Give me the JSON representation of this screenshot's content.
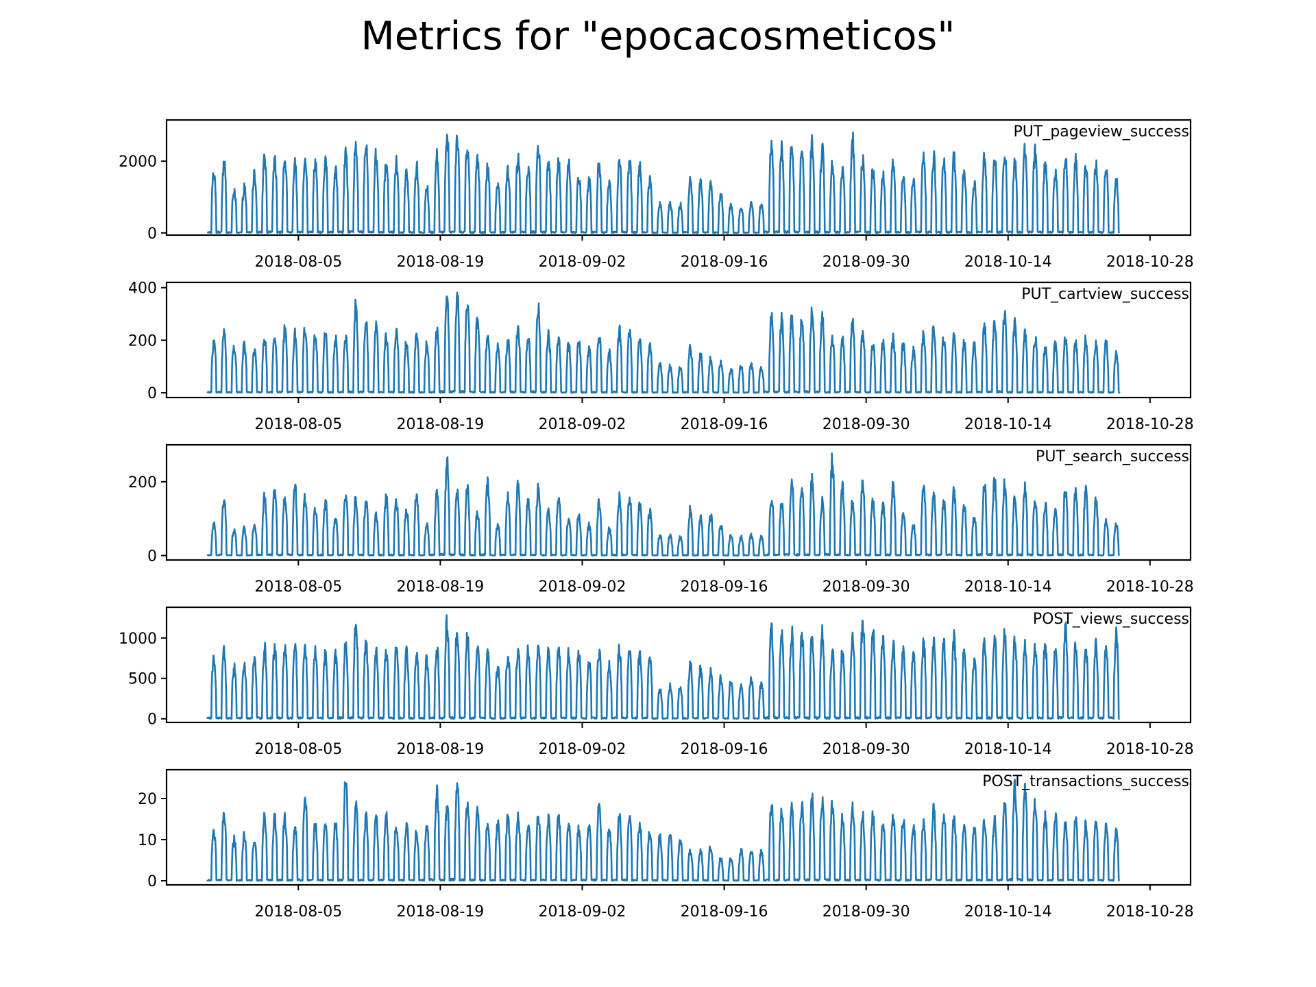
{
  "chart_data": {
    "type": "line",
    "title": "Metrics for \"epocacosmeticos\"",
    "line_color": "#1f77b4",
    "x_ticks": [
      "2018-08-05",
      "2018-08-19",
      "2018-09-02",
      "2018-09-16",
      "2018-09-30",
      "2018-10-14",
      "2018-10-28"
    ],
    "x_range": [
      "2018-07-23",
      "2018-11-01"
    ],
    "data_start": "2018-07-27",
    "data_end": "2018-10-25",
    "sampling": "hourly (approximate reconstruction of daily cycles)",
    "panels": [
      {
        "name": "PUT_pageview_success",
        "ylim": [
          -60,
          3150
        ],
        "yticks": [
          0,
          2000
        ],
        "daily_peaks": [
          1850,
          2150,
          1350,
          1400,
          1800,
          2250,
          2300,
          2250,
          2050,
          2350,
          2200,
          2250,
          1950,
          2350,
          2700,
          2650,
          2400,
          2150,
          2200,
          1900,
          2000,
          1400,
          2350,
          3050,
          2950,
          2750,
          2300,
          2000,
          1500,
          1900,
          2250,
          2050,
          2650,
          2200,
          2150,
          2150,
          1750,
          1600,
          2150,
          1500,
          2200,
          2150,
          2050,
          1700,
          900,
          950,
          850,
          1600,
          1550,
          1450,
          1200,
          900,
          800,
          900,
          900,
          2650,
          2600,
          2750,
          2500,
          2800,
          2600,
          2050,
          1950,
          2850,
          2200,
          1900,
          1800,
          2150,
          1700,
          1650,
          2250,
          2350,
          2200,
          2300,
          1900,
          1500,
          2300,
          2350,
          2450,
          2200,
          2650,
          2450,
          2100,
          1900,
          2300,
          2250,
          2050,
          2050,
          2000,
          1600,
          1600,
          2400,
          2350,
          2300,
          2200
        ],
        "tail_value": 20
      },
      {
        "name": "PUT_cartview_success",
        "ylim": [
          -18,
          420
        ],
        "yticks": [
          0,
          200,
          400
        ],
        "daily_peaks": [
          220,
          250,
          200,
          200,
          180,
          230,
          240,
          260,
          250,
          270,
          240,
          260,
          220,
          240,
          360,
          290,
          270,
          230,
          260,
          210,
          240,
          200,
          260,
          390,
          400,
          380,
          310,
          240,
          190,
          220,
          260,
          240,
          350,
          240,
          230,
          200,
          220,
          180,
          240,
          170,
          260,
          250,
          230,
          200,
          120,
          110,
          110,
          190,
          160,
          140,
          130,
          100,
          110,
          120,
          110,
          310,
          300,
          310,
          300,
          340,
          320,
          230,
          220,
          300,
          240,
          200,
          210,
          230,
          210,
          180,
          240,
          270,
          230,
          230,
          210,
          200,
          280,
          300,
          340,
          290,
          240,
          230,
          190,
          200,
          230,
          210,
          220,
          210,
          210,
          170,
          170,
          250,
          240,
          250,
          220
        ],
        "tail_value": 2
      },
      {
        "name": "PUT_search_success",
        "ylim": [
          -12,
          300
        ],
        "yticks": [
          0,
          200
        ],
        "daily_peaks": [
          95,
          170,
          80,
          80,
          95,
          175,
          190,
          170,
          200,
          170,
          140,
          160,
          110,
          180,
          175,
          160,
          120,
          170,
          160,
          140,
          180,
          90,
          180,
          270,
          190,
          200,
          130,
          210,
          90,
          170,
          210,
          170,
          200,
          130,
          170,
          110,
          120,
          90,
          160,
          80,
          170,
          175,
          150,
          130,
          60,
          60,
          55,
          140,
          110,
          120,
          90,
          60,
          55,
          60,
          55,
          170,
          160,
          220,
          200,
          220,
          160,
          280,
          200,
          160,
          210,
          160,
          150,
          210,
          120,
          90,
          210,
          180,
          160,
          190,
          150,
          110,
          210,
          220,
          210,
          170,
          200,
          170,
          150,
          130,
          200,
          190,
          190,
          160,
          110,
          90,
          90,
          200,
          200,
          230,
          190
        ],
        "tail_value": 2
      },
      {
        "name": "POST_views_success",
        "ylim": [
          -45,
          1380
        ],
        "yticks": [
          0,
          500,
          1000
        ],
        "daily_peaks": [
          850,
          900,
          700,
          700,
          800,
          950,
          950,
          1000,
          1000,
          950,
          950,
          900,
          850,
          1050,
          1300,
          1050,
          900,
          900,
          950,
          900,
          850,
          800,
          950,
          1300,
          1200,
          1100,
          950,
          900,
          700,
          850,
          950,
          950,
          1000,
          900,
          950,
          900,
          900,
          800,
          900,
          750,
          950,
          900,
          900,
          850,
          400,
          450,
          450,
          750,
          700,
          650,
          550,
          500,
          450,
          550,
          500,
          1200,
          1150,
          1150,
          1150,
          1100,
          1150,
          900,
          900,
          1150,
          1300,
          1200,
          1100,
          1000,
          900,
          850,
          1050,
          1050,
          1000,
          1100,
          900,
          800,
          1050,
          1150,
          1150,
          1100,
          1000,
          1000,
          1000,
          900,
          1200,
          1000,
          950,
          1000,
          950,
          1150,
          800,
          1050,
          1150,
          1100,
          1000
        ],
        "tail_value": 5
      },
      {
        "name": "POST_transactions_success",
        "ylim": [
          -1,
          27
        ],
        "yticks": [
          0,
          10,
          20
        ],
        "daily_peaks": [
          13,
          18,
          11,
          12,
          11,
          17,
          17,
          17,
          15,
          22,
          15,
          15,
          15,
          26,
          20,
          17,
          17,
          17,
          15,
          15,
          13,
          15,
          24,
          20,
          25,
          21,
          19,
          15,
          15,
          17,
          17,
          15,
          17,
          17,
          17,
          15,
          14,
          15,
          20,
          14,
          17,
          17,
          15,
          13,
          12,
          12,
          11,
          8,
          8,
          9,
          6,
          6,
          8,
          8,
          8,
          20,
          19,
          19,
          20,
          22,
          22,
          20,
          17,
          20,
          17,
          17,
          15,
          17,
          17,
          15,
          15,
          19,
          17,
          17,
          15,
          14,
          16,
          16,
          20,
          26,
          24,
          20,
          17,
          17,
          15,
          16,
          15,
          15,
          14,
          13,
          11,
          15,
          19,
          21,
          17
        ],
        "tail_value": 0
      }
    ]
  }
}
